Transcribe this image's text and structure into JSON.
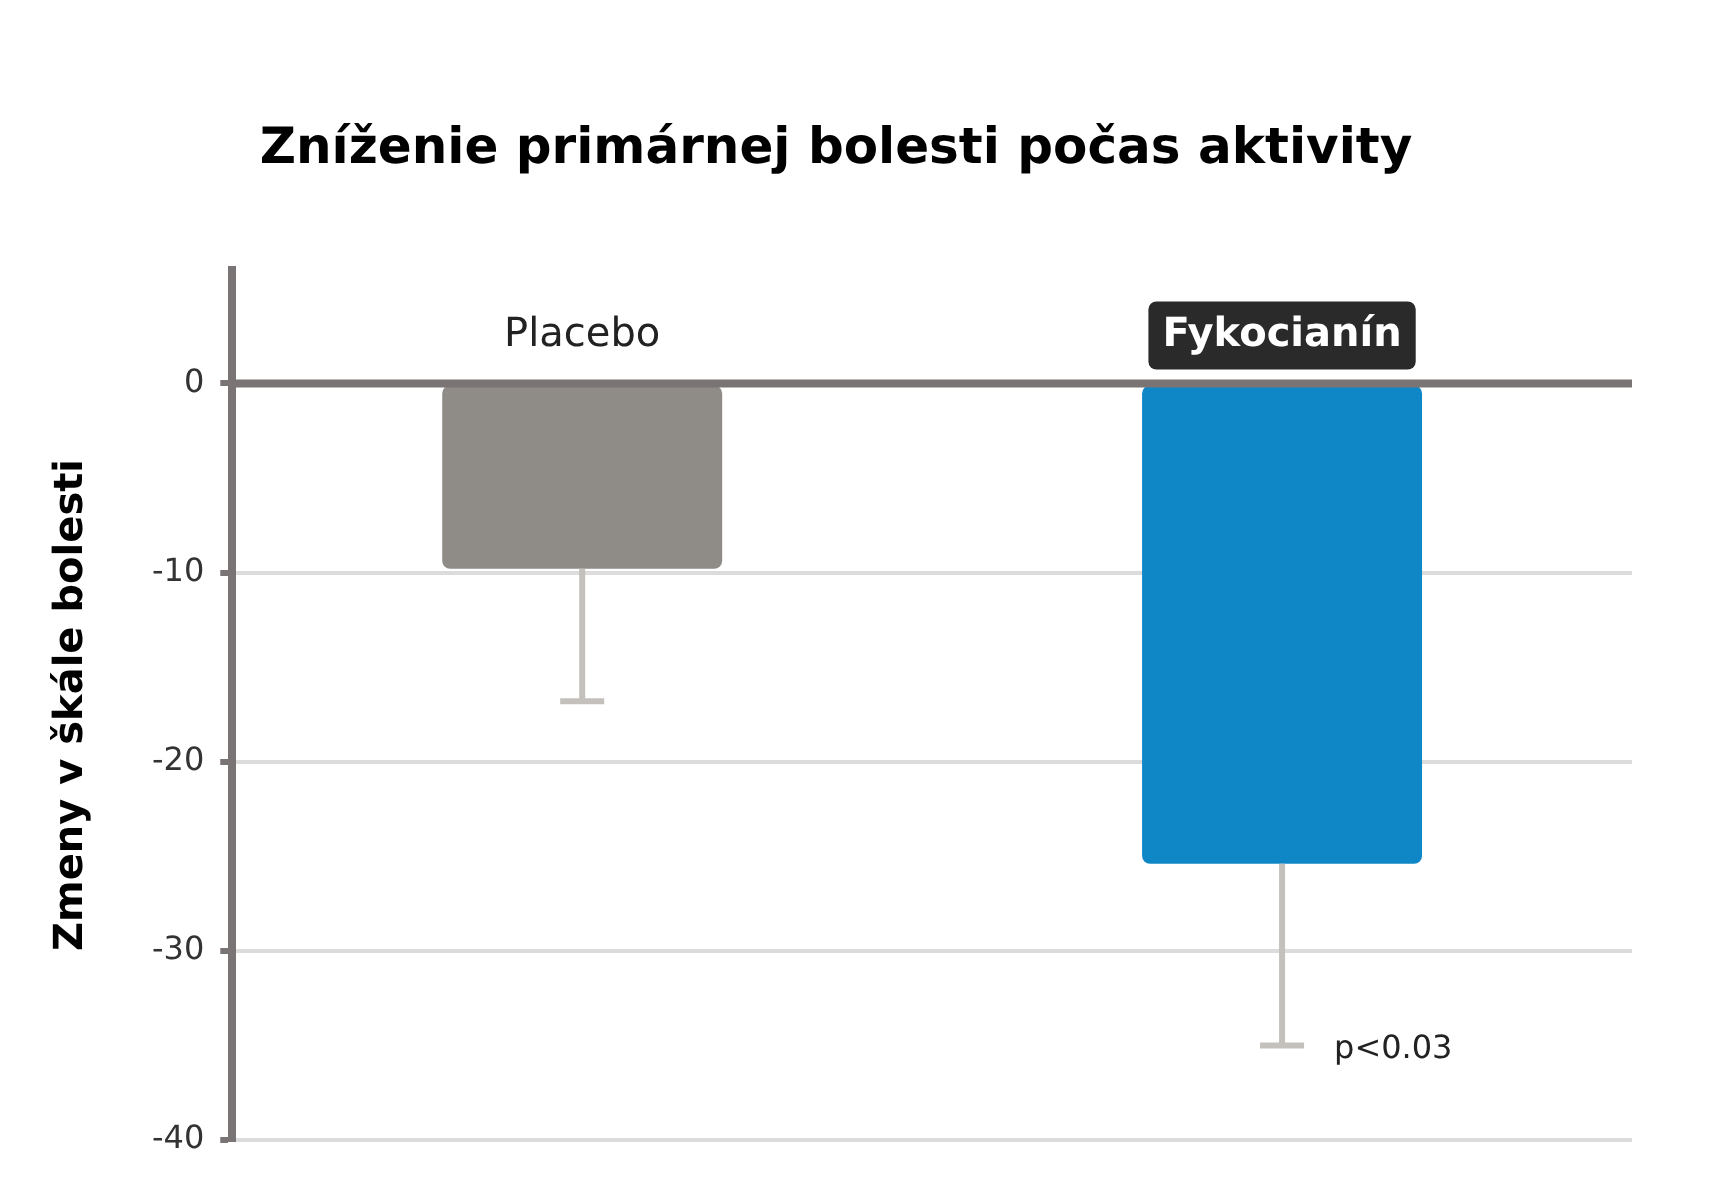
{
  "chart_data": {
    "type": "bar",
    "title": "Zníženie primárnej bolesti počas aktivity",
    "ylabel": "Zmeny v škále bolesti",
    "categories": [
      "Placebo",
      "Fykocianín"
    ],
    "values": [
      -9.8,
      -25.4
    ],
    "colors": [
      "#8f8b87",
      "#0f86c6"
    ],
    "errors": [
      [
        -16.8,
        -9.8
      ],
      [
        -35,
        -25.4
      ]
    ],
    "ylim": [
      -40,
      6
    ],
    "yticks": [
      0,
      -10,
      -20,
      -30,
      -40
    ],
    "grid": "y",
    "annotations": [
      "p<0.03"
    ]
  }
}
